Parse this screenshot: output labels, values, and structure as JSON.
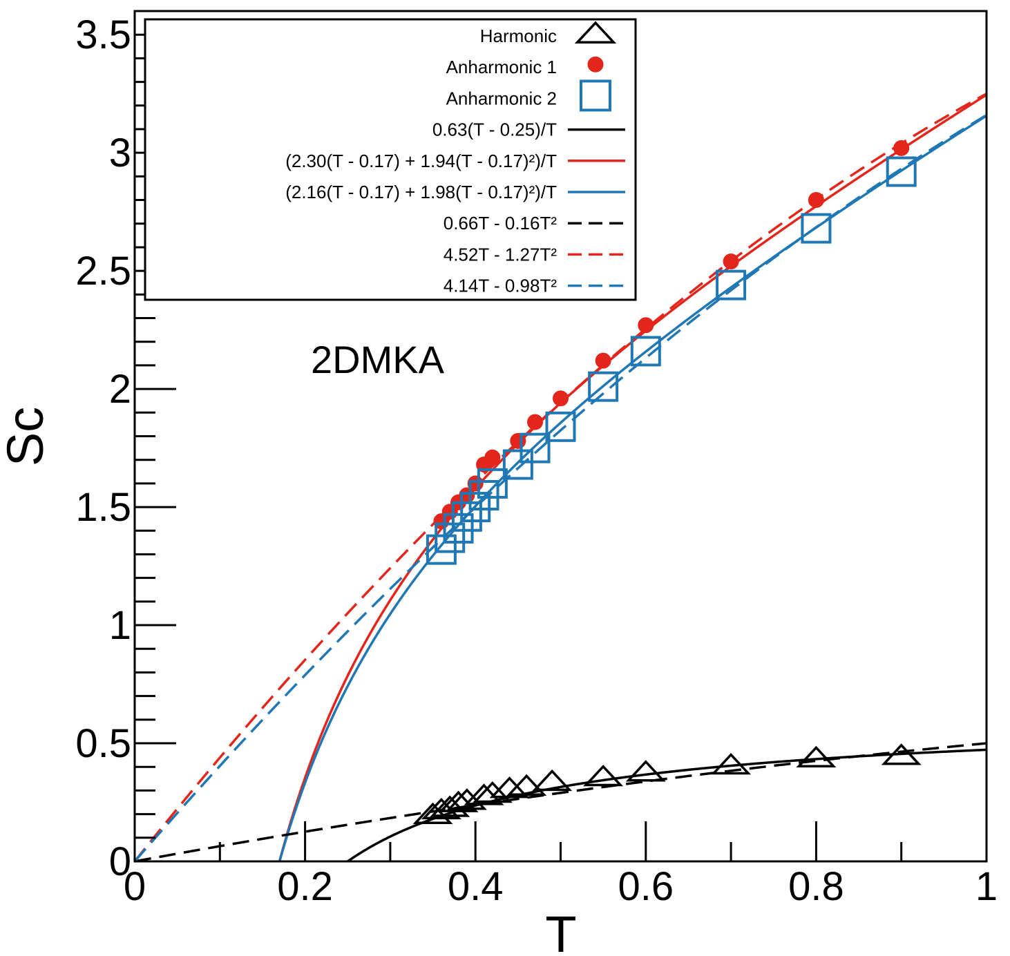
{
  "chart_data": {
    "type": "line",
    "title": "",
    "xlabel": "T",
    "ylabel": "Sc",
    "xlim": [
      0,
      1
    ],
    "ylim": [
      0,
      3.6
    ],
    "x_ticks": [
      "0",
      "0.2",
      "0.4",
      "0.6",
      "0.8",
      "1"
    ],
    "y_ticks": [
      "0",
      "0.5",
      "1",
      "1.5",
      "2",
      "2.5",
      "3",
      "3.5"
    ],
    "annotation": "2DMKA",
    "legend_position": "top-left",
    "colors": {
      "black": "#000000",
      "red": "#e3261b",
      "blue": "#1f77b4"
    },
    "series": [
      {
        "name": "Harmonic",
        "kind": "markers",
        "marker": "triangle",
        "color": "#000000",
        "x": [
          0.35,
          0.36,
          0.37,
          0.38,
          0.39,
          0.41,
          0.42,
          0.44,
          0.46,
          0.49,
          0.55,
          0.6,
          0.7,
          0.8,
          0.9
        ],
        "y": [
          0.2,
          0.22,
          0.23,
          0.25,
          0.26,
          0.28,
          0.29,
          0.31,
          0.32,
          0.34,
          0.36,
          0.38,
          0.41,
          0.44,
          0.45
        ]
      },
      {
        "name": "Anharmonic 1",
        "kind": "markers",
        "marker": "circle",
        "color": "#e3261b",
        "x": [
          0.36,
          0.37,
          0.38,
          0.39,
          0.4,
          0.41,
          0.42,
          0.45,
          0.47,
          0.5,
          0.55,
          0.6,
          0.7,
          0.8,
          0.9
        ],
        "y": [
          1.44,
          1.48,
          1.52,
          1.55,
          1.6,
          1.68,
          1.71,
          1.78,
          1.86,
          1.96,
          2.12,
          2.27,
          2.54,
          2.8,
          3.02
        ]
      },
      {
        "name": "Anharmonic 2",
        "kind": "markers",
        "marker": "square",
        "color": "#1f77b4",
        "x": [
          0.36,
          0.37,
          0.38,
          0.39,
          0.4,
          0.41,
          0.42,
          0.45,
          0.47,
          0.5,
          0.55,
          0.6,
          0.7,
          0.8,
          0.9
        ],
        "y": [
          1.32,
          1.37,
          1.41,
          1.46,
          1.5,
          1.55,
          1.6,
          1.68,
          1.75,
          1.84,
          2.01,
          2.16,
          2.44,
          2.68,
          2.92
        ]
      },
      {
        "name": "0.63(T - 0.25)/T",
        "kind": "solid",
        "color": "#000000",
        "formula": "frac",
        "a": 0.63,
        "b": 0,
        "t0": 0.25
      },
      {
        "name": "(2.30(T - 0.17) + 1.94(T - 0.17)²)/T",
        "kind": "solid",
        "color": "#e3261b",
        "formula": "frac",
        "a": 2.3,
        "b": 1.94,
        "t0": 0.17
      },
      {
        "name": "(2.16(T - 0.17) + 1.98(T - 0.17)²)/T",
        "kind": "solid",
        "color": "#1f77b4",
        "formula": "frac",
        "a": 2.16,
        "b": 1.98,
        "t0": 0.17
      },
      {
        "name": "0.66T - 0.16T²",
        "kind": "dashed",
        "color": "#000000",
        "formula": "poly",
        "a": 0.66,
        "b": -0.16
      },
      {
        "name": "4.52T - 1.27T²",
        "kind": "dashed",
        "color": "#e3261b",
        "formula": "poly",
        "a": 4.52,
        "b": -1.27
      },
      {
        "name": "4.14T - 0.98T²",
        "kind": "dashed",
        "color": "#1f77b4",
        "formula": "poly",
        "a": 4.14,
        "b": -0.98
      }
    ]
  }
}
